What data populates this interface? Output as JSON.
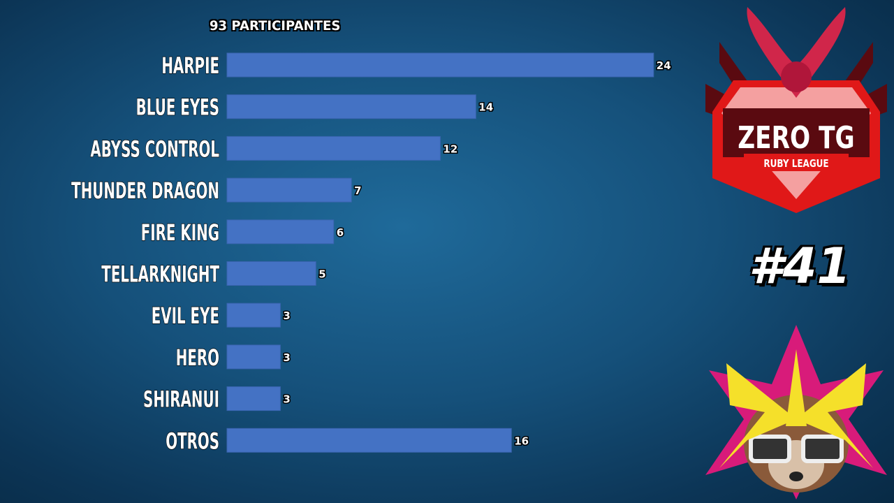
{
  "chart_data": {
    "type": "bar",
    "orientation": "horizontal",
    "title": "93 PARTICIPANTES",
    "categories": [
      "HARPIE",
      "BLUE EYES",
      "ABYSS CONTROL",
      "THUNDER DRAGON",
      "FIRE KING",
      "TELLARKNIGHT",
      "EVIL EYE",
      "HERO",
      "SHIRANUI",
      "OTROS"
    ],
    "values": [
      24,
      14,
      12,
      7,
      6,
      5,
      3,
      3,
      3,
      16
    ],
    "bar_color": "#4472c4",
    "data_labels": true,
    "grid": false
  },
  "badge": {
    "edition": "#41"
  },
  "logo": {
    "title": "ZERO TG",
    "subtitle": "RUBY LEAGUE"
  }
}
